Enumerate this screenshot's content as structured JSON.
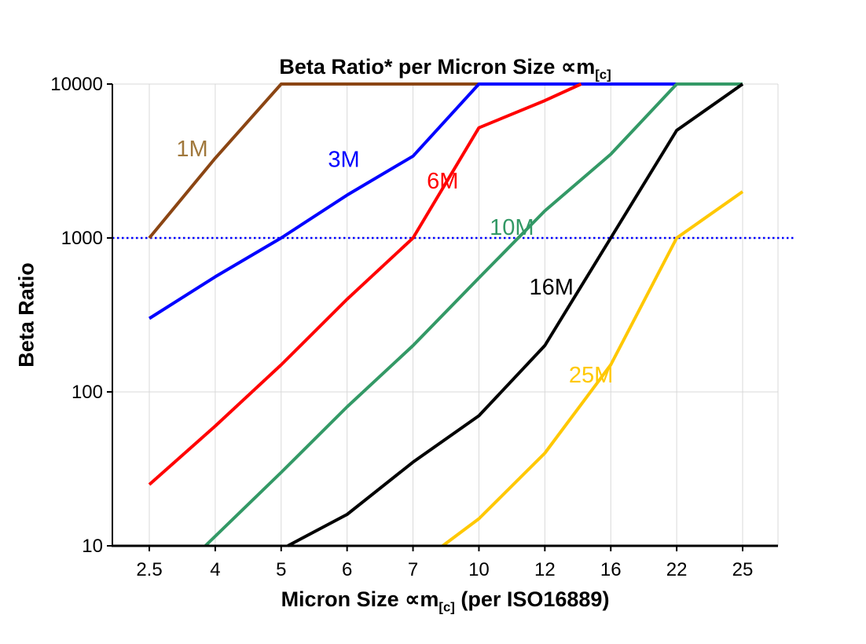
{
  "chart_data": {
    "type": "line",
    "title": {
      "prefix": "Beta Ratio* per Micron Size ∝m",
      "sub": "[c]"
    },
    "xlabel": {
      "prefix": "Micron Size ∝m",
      "sub": "[c]",
      "suffix": " (per ISO16889)"
    },
    "ylabel": "Beta Ratio",
    "x_categories": [
      "2.5",
      "4",
      "5",
      "6",
      "7",
      "10",
      "12",
      "16",
      "22",
      "25"
    ],
    "y_ticks": [
      10,
      100,
      1000,
      10000
    ],
    "ylim": [
      10,
      10000
    ],
    "yscale": "log",
    "grid": true,
    "grid_color": "#D9D9D9",
    "axis_color": "#000000",
    "reference_line": {
      "value": 1000,
      "color": "#0000FF",
      "style": "dotted"
    },
    "series": [
      {
        "name": "1M",
        "color": "#8B4513",
        "label_color": "#A0783C",
        "label_at": [
          0.65,
          3400
        ],
        "points": [
          [
            0,
            1000
          ],
          [
            1,
            3300
          ],
          [
            2,
            10000
          ],
          [
            5,
            10000
          ]
        ]
      },
      {
        "name": "3M",
        "color": "#0000FF",
        "label_color": "#0000FF",
        "label_at": [
          2.95,
          2900
        ],
        "points": [
          [
            0,
            300
          ],
          [
            1,
            560
          ],
          [
            2,
            1000
          ],
          [
            3,
            1900
          ],
          [
            4,
            3400
          ],
          [
            5,
            10000
          ],
          [
            8,
            10000
          ]
        ]
      },
      {
        "name": "6M",
        "color": "#FF0000",
        "label_color": "#FF0000",
        "label_at": [
          4.45,
          2100
        ],
        "points": [
          [
            0,
            25
          ],
          [
            1,
            60
          ],
          [
            2,
            150
          ],
          [
            3,
            400
          ],
          [
            4,
            1000
          ],
          [
            5,
            5200
          ],
          [
            6,
            7800
          ],
          [
            6.55,
            10000
          ]
        ]
      },
      {
        "name": "10M",
        "color": "#339966",
        "label_color": "#339966",
        "label_at": [
          5.5,
          1050
        ],
        "points": [
          [
            0.85,
            10
          ],
          [
            2,
            30
          ],
          [
            3,
            80
          ],
          [
            4,
            200
          ],
          [
            5,
            550
          ],
          [
            6,
            1500
          ],
          [
            7,
            3500
          ],
          [
            8,
            10000
          ],
          [
            9,
            10000
          ]
        ]
      },
      {
        "name": "16M",
        "color": "#000000",
        "label_color": "#000000",
        "label_at": [
          6.1,
          430
        ],
        "points": [
          [
            2.1,
            10
          ],
          [
            3,
            16
          ],
          [
            4,
            35
          ],
          [
            5,
            70
          ],
          [
            6,
            200
          ],
          [
            7,
            1000
          ],
          [
            8,
            5000
          ],
          [
            9,
            10000
          ]
        ]
      },
      {
        "name": "25M",
        "color": "#FFC800",
        "label_color": "#FFC800",
        "label_at": [
          6.7,
          115
        ],
        "points": [
          [
            4.45,
            10
          ],
          [
            5,
            15
          ],
          [
            6,
            40
          ],
          [
            7,
            150
          ],
          [
            8,
            1000
          ],
          [
            9,
            2000
          ]
        ]
      }
    ]
  }
}
